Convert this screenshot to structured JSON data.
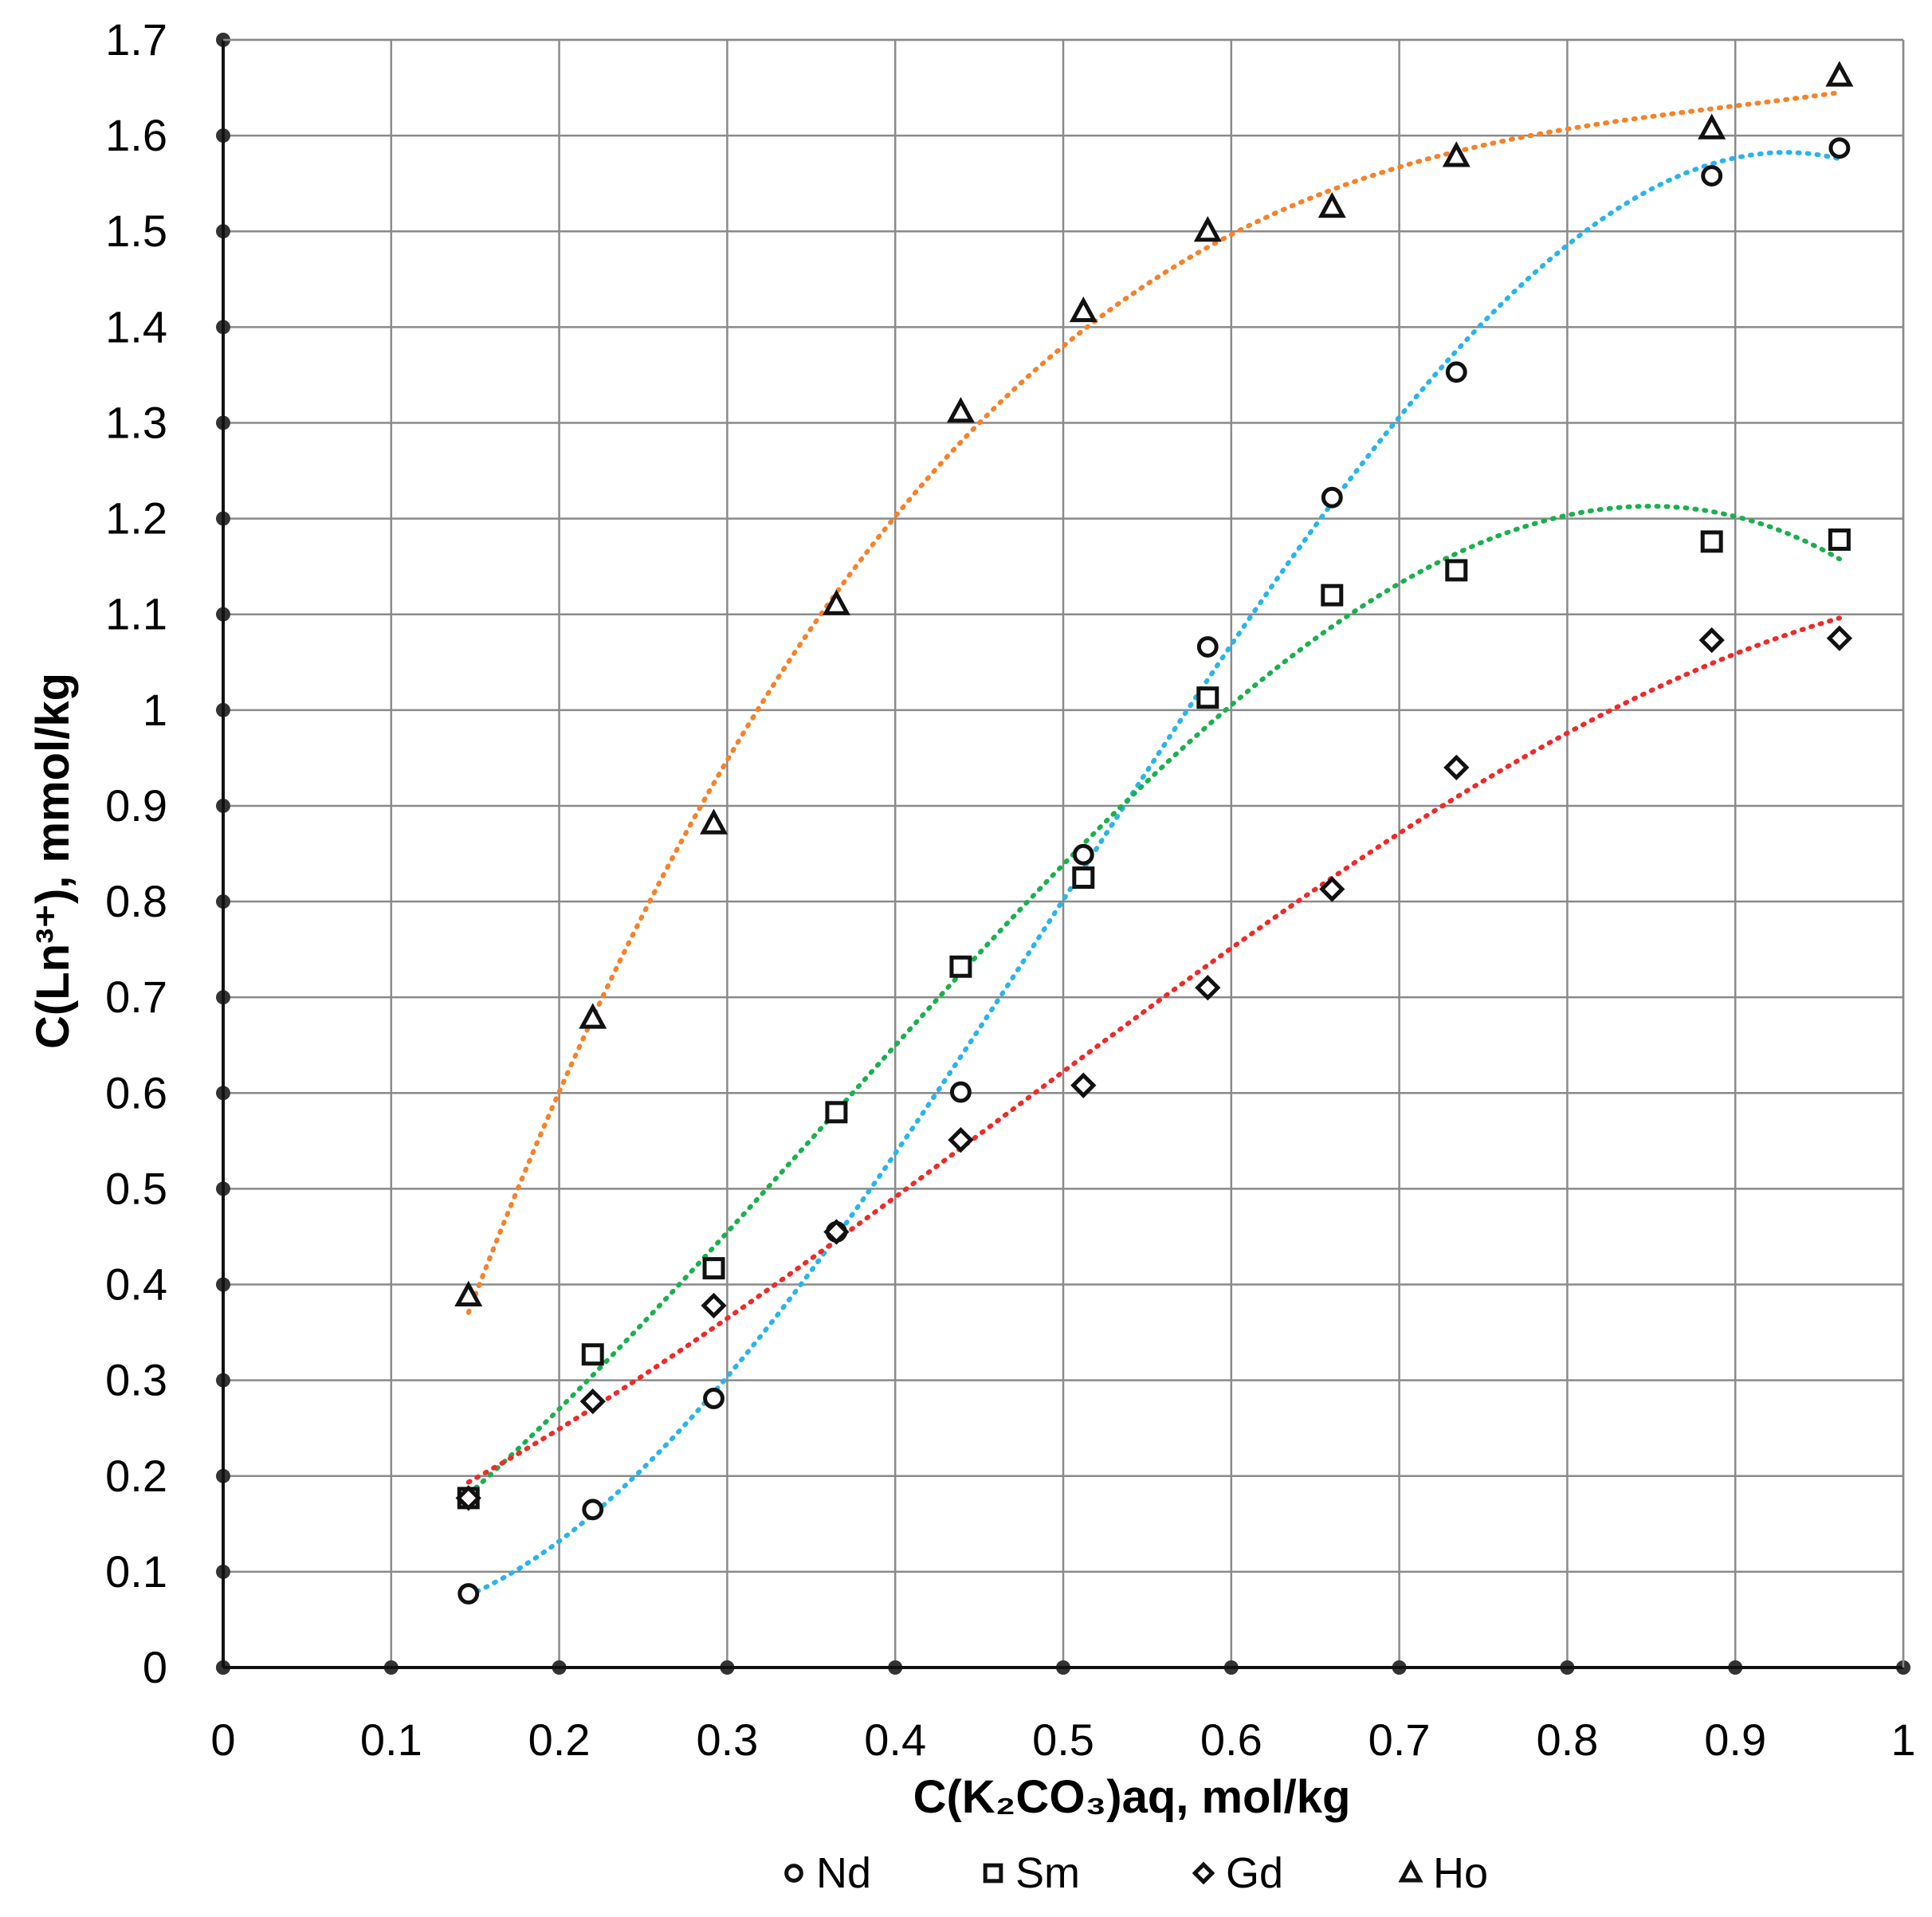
{
  "chart_data": {
    "type": "scatter",
    "xlabel": "C(K₂CO₃)aq, mol/kg",
    "ylabel": "C(Ln³⁺), mmol/kg",
    "xlim": [
      0,
      1
    ],
    "ylim": [
      0,
      1.7
    ],
    "x_ticks": [
      "0",
      "0.1",
      "0.2",
      "0.3",
      "0.4",
      "0.5",
      "0.6",
      "0.7",
      "0.8",
      "0.9",
      "1"
    ],
    "y_ticks": [
      "0",
      "0.1",
      "0.2",
      "0.3",
      "0.4",
      "0.5",
      "0.6",
      "0.7",
      "0.8",
      "0.9",
      "1",
      "1.1",
      "1.2",
      "1.3",
      "1.4",
      "1.5",
      "1.6",
      "1.7"
    ],
    "grid": true,
    "legend_position": "bottom",
    "x": [
      0.146,
      0.22,
      0.292,
      0.365,
      0.439,
      0.512,
      0.586,
      0.66,
      0.734,
      0.886,
      0.962
    ],
    "series": [
      {
        "name": "Nd",
        "marker": "circle",
        "trend_color": "#2ab5e8",
        "values": [
          0.077,
          0.165,
          0.281,
          0.455,
          0.601,
          0.849,
          1.066,
          1.222,
          1.353,
          1.558,
          1.587
        ]
      },
      {
        "name": "Sm",
        "marker": "square",
        "trend_color": "#1bb04f",
        "values": [
          0.177,
          0.327,
          0.417,
          0.58,
          0.732,
          0.825,
          1.013,
          1.12,
          1.146,
          1.176,
          1.178
        ]
      },
      {
        "name": "Gd",
        "marker": "diamond",
        "trend_color": "#ee2a2a",
        "values": [
          0.177,
          0.278,
          0.378,
          0.455,
          0.551,
          0.608,
          0.71,
          0.813,
          0.94,
          1.073,
          1.075
        ]
      },
      {
        "name": "Ho",
        "marker": "triangle",
        "trend_color": "#f5822a",
        "values": [
          0.388,
          0.678,
          0.881,
          1.11,
          1.311,
          1.416,
          1.5,
          1.525,
          1.578,
          1.607,
          1.662
        ]
      }
    ]
  }
}
